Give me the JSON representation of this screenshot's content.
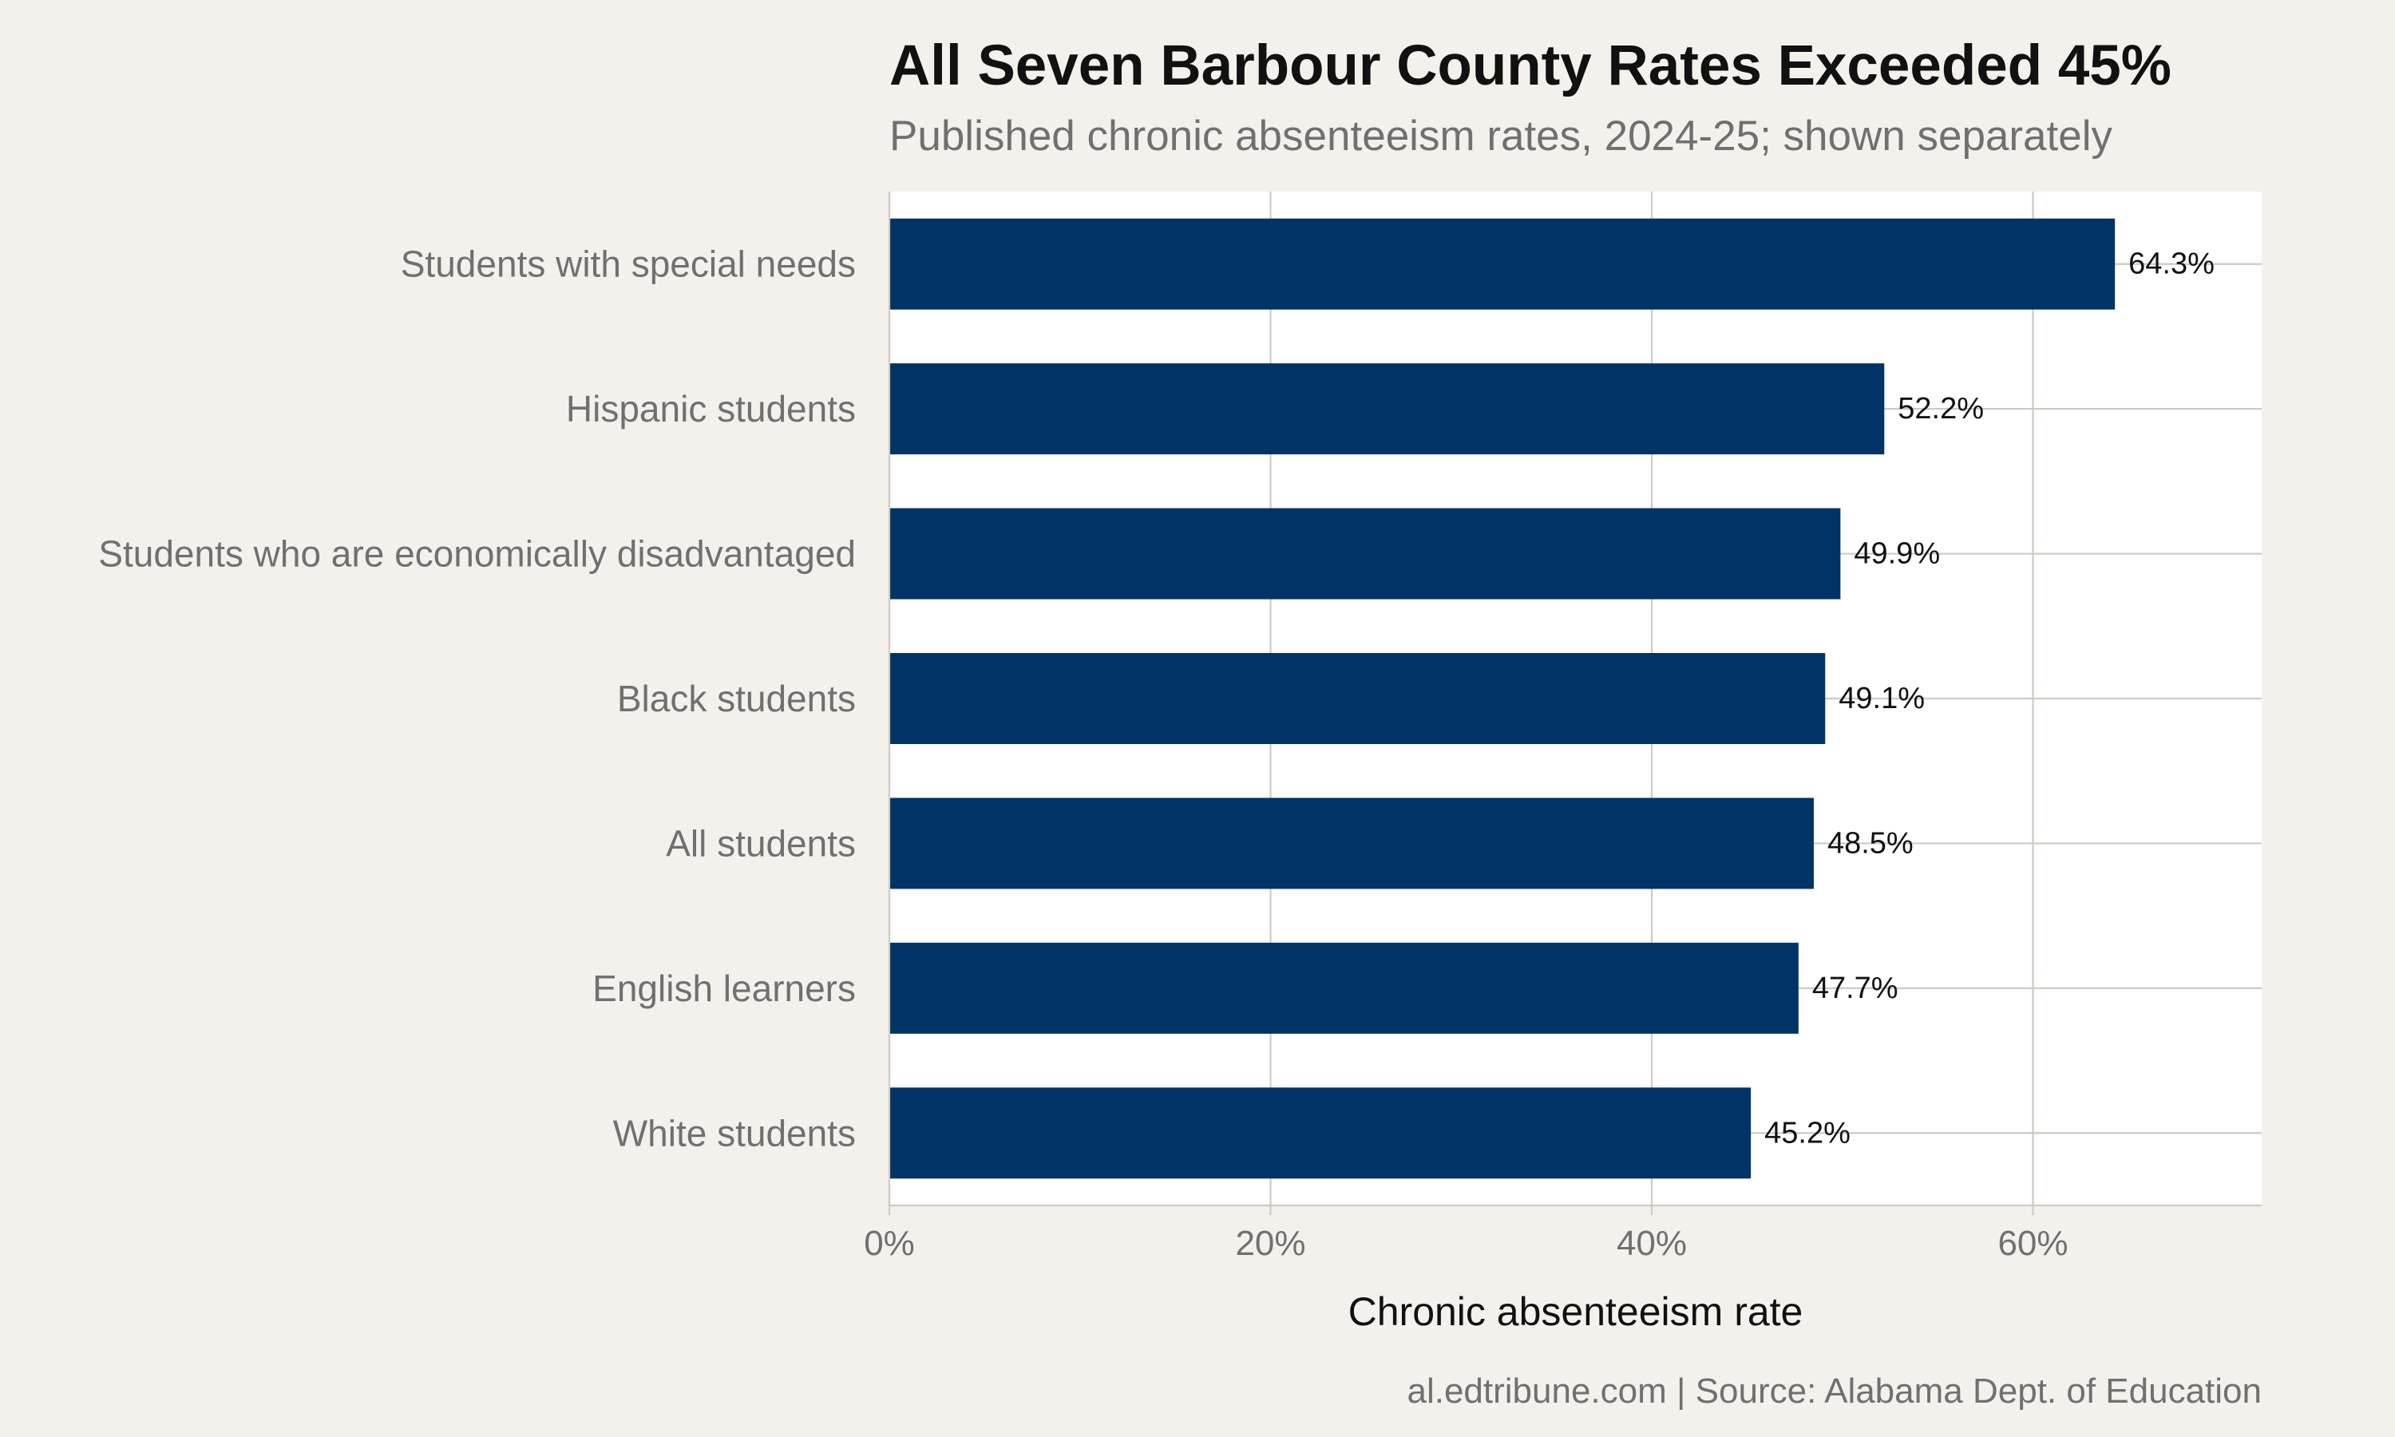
{
  "chart_data": {
    "type": "bar",
    "orientation": "horizontal",
    "title": "All Seven Barbour County Rates Exceeded 45%",
    "subtitle": "Published chronic absenteeism rates, 2024-25; shown separately",
    "caption": "al.edtribune.com | Source: Alabama Dept. of Education",
    "xlabel": "Chronic absenteeism rate",
    "ylabel": "",
    "categories": [
      "Students with special needs",
      "Hispanic students",
      "Students who are economically disadvantaged",
      "Black students",
      "All students",
      "English learners",
      "White students"
    ],
    "values": [
      64.3,
      52.2,
      49.9,
      49.1,
      48.5,
      47.7,
      45.2
    ],
    "data_labels": [
      "64.3%",
      "52.2%",
      "49.9%",
      "49.1%",
      "48.5%",
      "47.7%",
      "45.2%"
    ],
    "xlim": [
      0,
      72
    ],
    "x_ticks": [
      0,
      20,
      40,
      60
    ],
    "x_tick_labels": [
      "0%",
      "20%",
      "40%",
      "60%"
    ],
    "grid": true,
    "legend": "none",
    "colors": {
      "bar": "#003366",
      "panel": "#ffffff",
      "background": "#f4f1ec",
      "grid": "#cfcbc2",
      "title": "#111111",
      "muted_text": "#707070"
    }
  }
}
